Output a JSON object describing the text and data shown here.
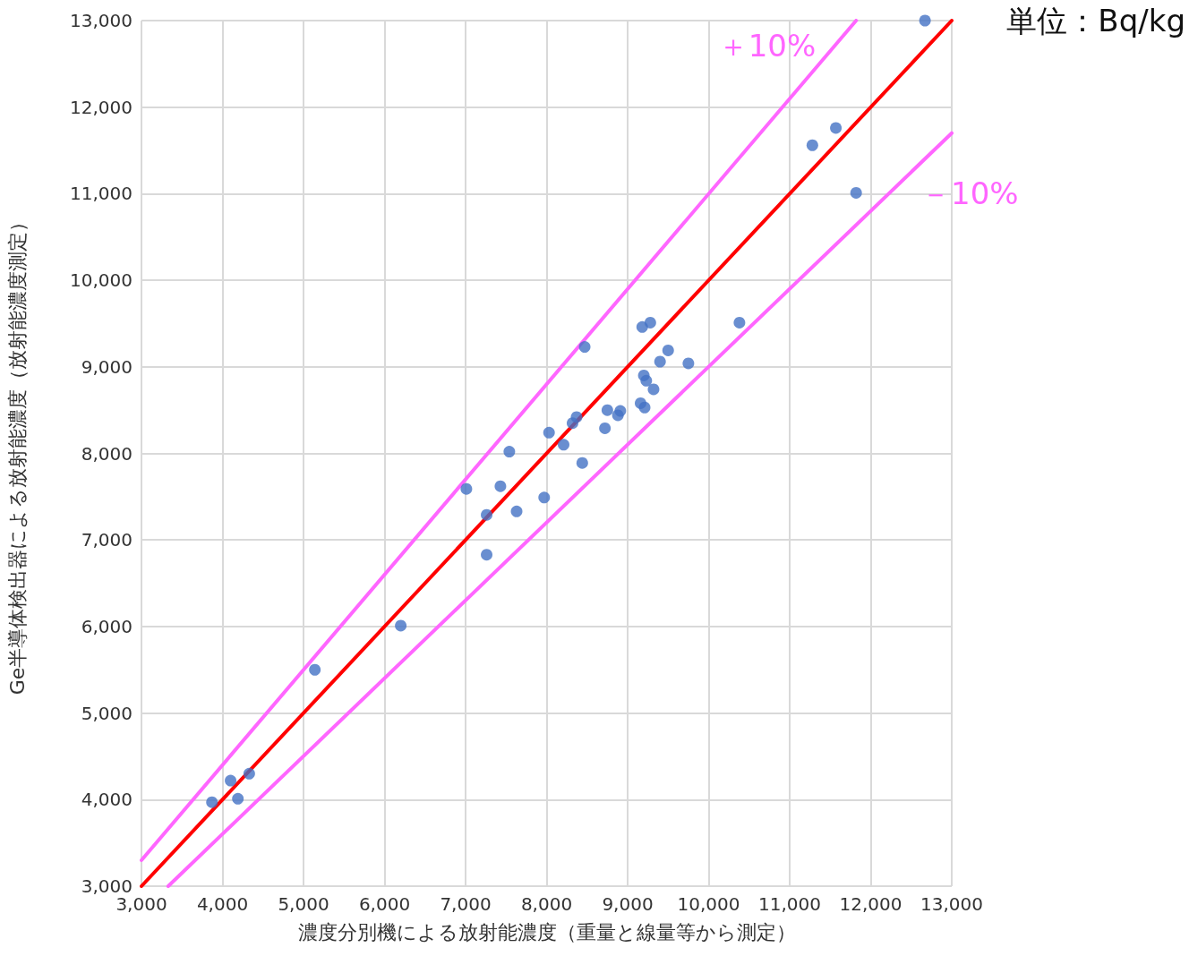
{
  "chart_data": {
    "type": "scatter",
    "xlabel": "濃度分別機による放射能濃度（重量と線量等から測定）",
    "ylabel": "Ge半導体検出器による放射能濃度（放射能濃度測定）",
    "annotations": [
      "単位：Bq/kg"
    ],
    "xlim": [
      3000,
      13000
    ],
    "ylim": [
      3000,
      13000
    ],
    "xticks": [
      {
        "value": 3000,
        "label": "3,000"
      },
      {
        "value": 4000,
        "label": "4,000"
      },
      {
        "value": 5000,
        "label": "5,000"
      },
      {
        "value": 6000,
        "label": "6,000"
      },
      {
        "value": 7000,
        "label": "7,000"
      },
      {
        "value": 8000,
        "label": "8,000"
      },
      {
        "value": 9000,
        "label": "9,000"
      },
      {
        "value": 10000,
        "label": "10,000"
      },
      {
        "value": 11000,
        "label": "11,000"
      },
      {
        "value": 12000,
        "label": "12,000"
      },
      {
        "value": 13000,
        "label": "13,000"
      }
    ],
    "yticks": [
      {
        "value": 3000,
        "label": "3,000"
      },
      {
        "value": 4000,
        "label": "4,000"
      },
      {
        "value": 5000,
        "label": "5,000"
      },
      {
        "value": 6000,
        "label": "6,000"
      },
      {
        "value": 7000,
        "label": "7,000"
      },
      {
        "value": 8000,
        "label": "8,000"
      },
      {
        "value": 9000,
        "label": "9,000"
      },
      {
        "value": 10000,
        "label": "10,000"
      },
      {
        "value": 11000,
        "label": "11,000"
      },
      {
        "value": 12000,
        "label": "12,000"
      },
      {
        "value": 13000,
        "label": "13,000"
      }
    ],
    "grid": true,
    "marker": "circle",
    "series": [
      {
        "color": "#4472c4",
        "x": [
          3870,
          4100,
          4190,
          4330,
          5140,
          6200,
          7010,
          7260,
          7260,
          7430,
          7540,
          7630,
          7970,
          8030,
          8210,
          8320,
          8370,
          8440,
          8470,
          8720,
          8750,
          8880,
          8910,
          9160,
          9210,
          9200,
          9230,
          9180,
          9280,
          9320,
          9400,
          9500,
          9750,
          10380,
          11280,
          11570,
          11820,
          12670
        ],
        "values": [
          3970,
          4220,
          4010,
          4300,
          5500,
          6010,
          7590,
          7290,
          6830,
          7620,
          8020,
          7330,
          7490,
          8240,
          8100,
          8350,
          8420,
          7890,
          9230,
          8290,
          8500,
          8440,
          8490,
          8580,
          8530,
          8900,
          8840,
          9460,
          9510,
          8740,
          9060,
          9190,
          9040,
          9510,
          11560,
          11760,
          11010,
          13000
        ]
      },
      {
        "type": "line",
        "marker": "none",
        "color": "#ff0000",
        "x": [
          3000,
          13000
        ],
        "values": [
          3000,
          13000
        ]
      },
      {
        "type": "line",
        "marker": "none",
        "name": "＋10%",
        "color": "#ff66ff",
        "x": [
          3000,
          11820
        ],
        "values": [
          3300,
          13000
        ]
      },
      {
        "type": "line",
        "marker": "none",
        "name": "－10%",
        "color": "#ff66ff",
        "x": [
          3330,
          13000
        ],
        "values": [
          3000,
          11700
        ]
      }
    ]
  }
}
